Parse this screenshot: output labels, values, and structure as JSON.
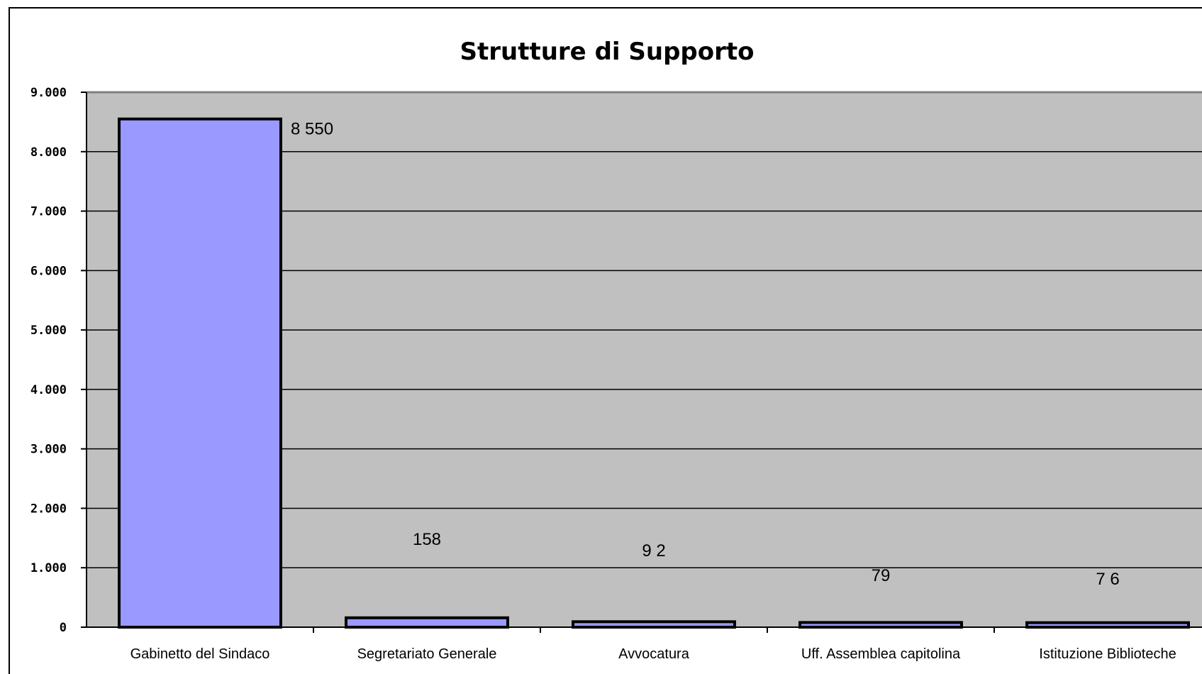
{
  "chart_data": {
    "type": "bar",
    "title": "Strutture di Supporto",
    "xlabel": "",
    "ylabel": "",
    "categories": [
      "Gabinetto del Sindaco",
      "Segretariato Generale",
      "Avvocatura",
      "Uff. Assemblea capitolina",
      "Istituzione Biblioteche"
    ],
    "values": [
      8550,
      158,
      92,
      79,
      76
    ],
    "data_labels": [
      "8 550",
      "158",
      "9 2",
      "79",
      "7 6"
    ],
    "ylim": [
      0,
      9000
    ],
    "yticks": [
      0,
      1000,
      2000,
      3000,
      4000,
      5000,
      6000,
      7000,
      8000,
      9000
    ],
    "ytick_labels": [
      "0",
      "1.000",
      "2.000",
      "3.000",
      "4.000",
      "5.000",
      "6.000",
      "7.000",
      "8.000",
      "9.000"
    ],
    "grid": true,
    "legend": "none",
    "colors": {
      "plot_background": "#c0c0c0",
      "bar_fill": "#9999ff",
      "bar_stroke": "#000000",
      "gridline": "#000000"
    }
  }
}
